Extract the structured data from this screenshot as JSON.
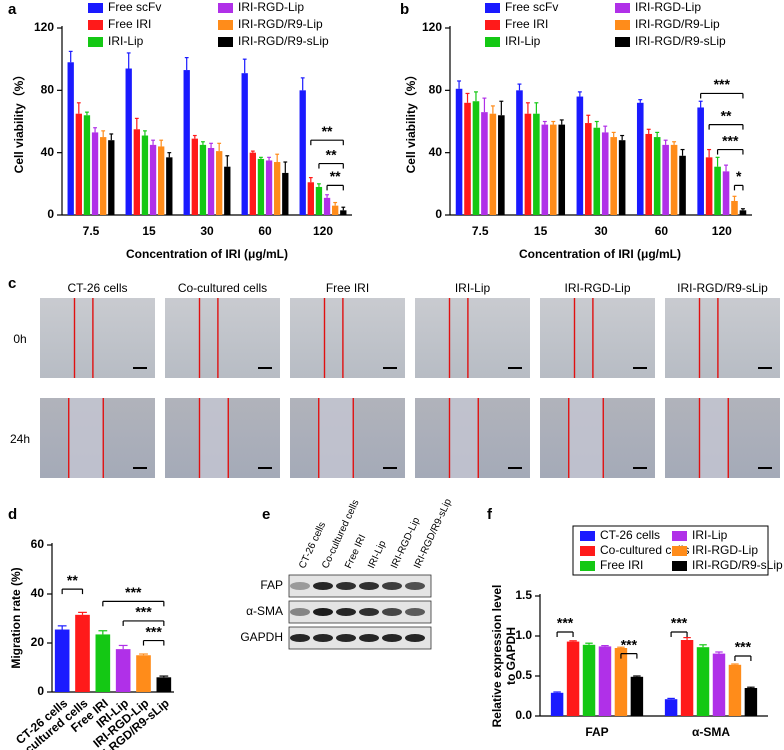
{
  "panel_labels": [
    "a",
    "b",
    "c",
    "d",
    "e",
    "f"
  ],
  "chart_data": [
    {
      "type": "bar",
      "categories": [
        "7.5",
        "15",
        "30",
        "60",
        "120"
      ],
      "xlabel": "Concentration of IRI (μg/mL)",
      "ylabel": "Cell viability（%）",
      "ylim": [
        0,
        120
      ],
      "yticks": [
        0,
        40,
        80,
        120
      ],
      "legend": "top",
      "series": [
        {
          "name": "Free scFv",
          "color": "#1a1aff",
          "values": [
            98,
            94,
            93,
            91,
            80
          ],
          "errors": [
            7,
            10,
            8,
            9,
            8
          ]
        },
        {
          "name": "Free IRI",
          "color": "#ff1a1a",
          "values": [
            65,
            55,
            49,
            40,
            21
          ],
          "errors": [
            7,
            7,
            2,
            1,
            3
          ]
        },
        {
          "name": "IRI-Lip",
          "color": "#14c814",
          "values": [
            64,
            51,
            45,
            36,
            18
          ],
          "errors": [
            2,
            3,
            2,
            1,
            2
          ]
        },
        {
          "name": "IRI-RGD-Lip",
          "color": "#b030e8",
          "values": [
            53,
            45,
            43,
            35,
            11
          ],
          "errors": [
            3,
            3,
            3,
            2,
            2
          ]
        },
        {
          "name": "IRI-RGD/R9-Lip",
          "color": "#ff8c1a",
          "values": [
            50,
            44,
            41,
            34,
            6
          ],
          "errors": [
            4,
            4,
            5,
            5,
            2
          ]
        },
        {
          "name": "IRI-RGD/R9-sLip",
          "color": "#000000",
          "values": [
            48,
            37,
            31,
            27,
            3
          ],
          "errors": [
            4,
            3,
            7,
            7,
            2
          ]
        }
      ],
      "annotations": [
        "**",
        "**",
        "**"
      ]
    },
    {
      "type": "bar",
      "categories": [
        "7.5",
        "15",
        "30",
        "60",
        "120"
      ],
      "xlabel": "Concentration of IRI (μg/mL)",
      "ylabel": "Cell viability（%）",
      "ylim": [
        0,
        120
      ],
      "yticks": [
        0,
        40,
        80,
        120
      ],
      "legend": "top",
      "series": [
        {
          "name": "Free scFv",
          "color": "#1a1aff",
          "values": [
            81,
            80,
            76,
            72,
            69
          ],
          "errors": [
            5,
            4,
            3,
            2,
            4
          ]
        },
        {
          "name": "Free IRI",
          "color": "#ff1a1a",
          "values": [
            72,
            65,
            59,
            52,
            37
          ],
          "errors": [
            6,
            7,
            5,
            3,
            5
          ]
        },
        {
          "name": "IRI-Lip",
          "color": "#14c814",
          "values": [
            73,
            65,
            56,
            50,
            31
          ],
          "errors": [
            6,
            7,
            4,
            3,
            6
          ]
        },
        {
          "name": "IRI-RGD-Lip",
          "color": "#b030e8",
          "values": [
            66,
            58,
            53,
            45,
            28
          ],
          "errors": [
            9,
            2,
            4,
            3,
            4
          ]
        },
        {
          "name": "IRI-RGD/R9-Lip",
          "color": "#ff8c1a",
          "values": [
            65,
            58,
            50,
            45,
            9
          ],
          "errors": [
            5,
            2,
            3,
            2,
            3
          ]
        },
        {
          "name": "IRI-RGD/R9-sLip",
          "color": "#000000",
          "values": [
            64,
            58,
            48,
            38,
            3
          ],
          "errors": [
            9,
            3,
            3,
            4,
            1
          ]
        }
      ],
      "annotations": [
        "***",
        "**",
        "***",
        "*"
      ]
    },
    {
      "type": "bar",
      "categories": [
        "CT-26 cells",
        "Co-cultured cells",
        "Free IRI",
        "IRI-Lip",
        "IRI-RGD-Lip",
        "IRI-RGD/R9-sLip"
      ],
      "ylabel": "Migration rate (%)",
      "ylim": [
        0,
        60
      ],
      "yticks": [
        0,
        20,
        40,
        60
      ],
      "values": [
        25.5,
        31.5,
        23.5,
        17.5,
        15,
        6
      ],
      "errors": [
        1.5,
        1,
        1.5,
        1.5,
        0.5,
        0.5
      ],
      "colors": [
        "#1a1aff",
        "#ff1a1a",
        "#14c814",
        "#b030e8",
        "#ff8c1a",
        "#000000"
      ],
      "annotations": [
        "**",
        "***",
        "***",
        "***"
      ]
    },
    {
      "type": "bar",
      "categories": [
        "FAP",
        "α-SMA"
      ],
      "ylabel": [
        "Relative expression level",
        "to GAPDH"
      ],
      "ylim": [
        0,
        1.5
      ],
      "yticks": [
        {
          "value": 0,
          "label": "0.0"
        },
        0.5,
        {
          "value": 1,
          "label": "1.0"
        },
        1.5
      ],
      "legend": "top",
      "series": [
        {
          "name": "CT-26 cells",
          "color": "#1a1aff",
          "values": [
            0.29,
            0.21
          ],
          "errors": [
            0.01,
            0.01
          ]
        },
        {
          "name": "Co-cultured cells",
          "color": "#ff1a1a",
          "values": [
            0.93,
            0.95
          ],
          "errors": [
            0.01,
            0.03
          ]
        },
        {
          "name": "Free IRI",
          "color": "#14c814",
          "values": [
            0.89,
            0.86
          ],
          "errors": [
            0.02,
            0.03
          ]
        },
        {
          "name": "IRI-Lip",
          "color": "#b030e8",
          "values": [
            0.87,
            0.78
          ],
          "errors": [
            0.01,
            0.02
          ]
        },
        {
          "name": "IRI-RGD-Lip",
          "color": "#ff8c1a",
          "values": [
            0.85,
            0.64
          ],
          "errors": [
            0.01,
            0.01
          ]
        },
        {
          "name": "IRI-RGD/R9-sLip",
          "color": "#000000",
          "values": [
            0.49,
            0.35
          ],
          "errors": [
            0.01,
            0.01
          ]
        }
      ],
      "annotations": [
        "***",
        "***",
        "***",
        "***"
      ]
    }
  ],
  "micrographs": {
    "columns": [
      "CT-26 cells",
      "Co-cultured cells",
      "Free IRI",
      "IRI-Lip",
      "IRI-RGD-Lip",
      "IRI-RGD/R9-sLip"
    ],
    "rows": [
      "0h",
      "24h"
    ]
  },
  "western_blot": {
    "lanes": [
      "CT-26 cells",
      "Co-cultured cells",
      "Free IRI",
      "IRI-Lip",
      "IRI-RGD-Lip",
      "IRI-RGD/R9-sLip"
    ],
    "bands": [
      "FAP",
      "α-SMA",
      "GAPDH"
    ]
  }
}
